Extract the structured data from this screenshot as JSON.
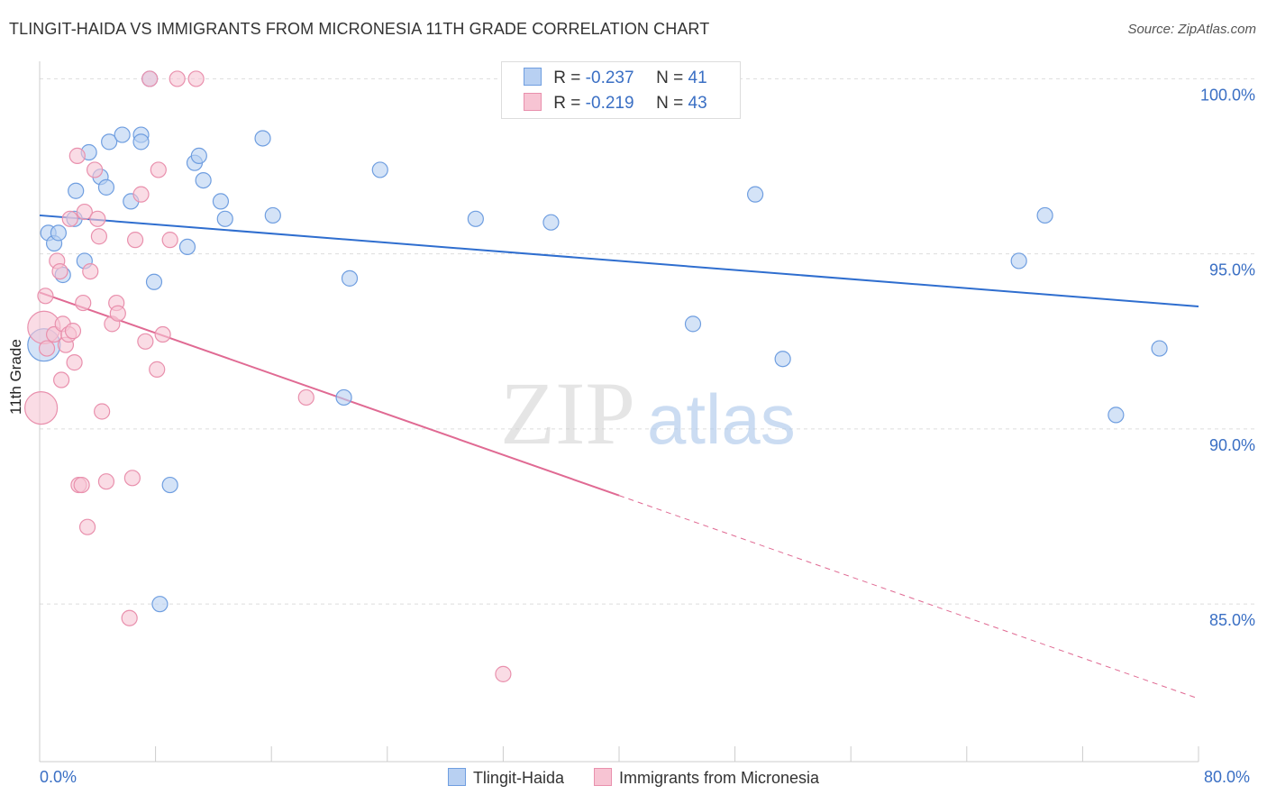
{
  "title": "TLINGIT-HAIDA VS IMMIGRANTS FROM MICRONESIA 11TH GRADE CORRELATION CHART",
  "source": "Source: ZipAtlas.com",
  "watermark": {
    "zip": "ZIP",
    "atlas": "atlas"
  },
  "legend": {
    "series1": {
      "r_label": "R =",
      "r_value": "-0.237",
      "n_label": "N =",
      "n_value": "41"
    },
    "series2": {
      "r_label": "R =",
      "r_value": "-0.219",
      "n_label": "N =",
      "n_value": "43"
    }
  },
  "colors": {
    "blue_fill": "#b8d0f2",
    "blue_stroke": "#6f9ee0",
    "blue_line": "#2f6ecf",
    "pink_fill": "#f7c4d3",
    "pink_stroke": "#e990ad",
    "pink_line": "#e06a93",
    "grid": "#dddddd",
    "axis_text": "#3a6fc4"
  },
  "chart_data": {
    "type": "scatter",
    "title": "TLINGIT-HAIDA VS IMMIGRANTS FROM MICRONESIA 11TH GRADE CORRELATION CHART",
    "xlabel": "",
    "ylabel": "11th Grade",
    "xlim": [
      0,
      80
    ],
    "ylim": [
      80.5,
      100.5
    ],
    "x_tick_labels": [
      "0.0%",
      "80.0%"
    ],
    "y_ticks": [
      85,
      90,
      95,
      100
    ],
    "y_tick_labels": [
      "85.0%",
      "90.0%",
      "95.0%",
      "100.0%"
    ],
    "grid": true,
    "legend_position": "top-center",
    "series": [
      {
        "name": "Tlingit-Haida",
        "r": -0.237,
        "n": 41,
        "trend": {
          "x": [
            0,
            80
          ],
          "y": [
            96.1,
            93.5
          ],
          "dashed_from": null
        },
        "points": [
          [
            0.3,
            92.4
          ],
          [
            0.6,
            95.6
          ],
          [
            1.0,
            95.3
          ],
          [
            1.3,
            95.6
          ],
          [
            1.6,
            94.4
          ],
          [
            2.5,
            96.8
          ],
          [
            2.4,
            96.0
          ],
          [
            3.1,
            94.8
          ],
          [
            3.4,
            97.9
          ],
          [
            4.2,
            97.2
          ],
          [
            4.6,
            96.9
          ],
          [
            4.8,
            98.2
          ],
          [
            5.7,
            98.4
          ],
          [
            6.3,
            96.5
          ],
          [
            7.0,
            98.4
          ],
          [
            7.0,
            98.2
          ],
          [
            7.6,
            100.0
          ],
          [
            7.9,
            94.2
          ],
          [
            8.3,
            85.0
          ],
          [
            9.0,
            88.4
          ],
          [
            10.2,
            95.2
          ],
          [
            10.7,
            97.6
          ],
          [
            11.0,
            97.8
          ],
          [
            11.3,
            97.1
          ],
          [
            12.5,
            96.5
          ],
          [
            12.8,
            96.0
          ],
          [
            15.4,
            98.3
          ],
          [
            16.1,
            96.1
          ],
          [
            21.4,
            94.3
          ],
          [
            21.0,
            90.9
          ],
          [
            23.5,
            97.4
          ],
          [
            30.1,
            96.0
          ],
          [
            35.3,
            95.9
          ],
          [
            36.6,
            100.0
          ],
          [
            45.1,
            93.0
          ],
          [
            49.4,
            96.7
          ],
          [
            51.3,
            92.0
          ],
          [
            67.6,
            94.8
          ],
          [
            69.4,
            96.1
          ],
          [
            77.3,
            92.3
          ],
          [
            74.3,
            90.4
          ]
        ]
      },
      {
        "name": "Immigrants from Micronesia",
        "r": -0.219,
        "n": 43,
        "trend": {
          "x": [
            0,
            80
          ],
          "y": [
            93.9,
            82.3
          ],
          "dashed_from": 40
        },
        "points": [
          [
            0.1,
            90.6
          ],
          [
            0.3,
            92.9
          ],
          [
            0.4,
            93.8
          ],
          [
            0.5,
            92.3
          ],
          [
            1.0,
            92.7
          ],
          [
            1.2,
            94.8
          ],
          [
            1.4,
            94.5
          ],
          [
            1.5,
            91.4
          ],
          [
            1.6,
            93.0
          ],
          [
            1.8,
            92.4
          ],
          [
            2.0,
            92.7
          ],
          [
            2.3,
            92.8
          ],
          [
            2.1,
            96.0
          ],
          [
            2.4,
            91.9
          ],
          [
            2.6,
            97.8
          ],
          [
            2.7,
            88.4
          ],
          [
            2.9,
            88.4
          ],
          [
            3.0,
            93.6
          ],
          [
            3.1,
            96.2
          ],
          [
            3.3,
            87.2
          ],
          [
            3.5,
            94.5
          ],
          [
            3.8,
            97.4
          ],
          [
            4.0,
            96.0
          ],
          [
            4.1,
            95.5
          ],
          [
            4.3,
            90.5
          ],
          [
            4.6,
            88.5
          ],
          [
            5.0,
            93.0
          ],
          [
            5.3,
            93.6
          ],
          [
            5.4,
            93.3
          ],
          [
            6.2,
            84.6
          ],
          [
            6.4,
            88.6
          ],
          [
            6.6,
            95.4
          ],
          [
            7.0,
            96.7
          ],
          [
            7.3,
            92.5
          ],
          [
            7.6,
            100.0
          ],
          [
            8.1,
            91.7
          ],
          [
            8.2,
            97.4
          ],
          [
            8.5,
            92.7
          ],
          [
            9.0,
            95.4
          ],
          [
            9.5,
            100.0
          ],
          [
            10.8,
            100.0
          ],
          [
            18.4,
            90.9
          ],
          [
            32.0,
            83.0
          ]
        ]
      }
    ]
  }
}
